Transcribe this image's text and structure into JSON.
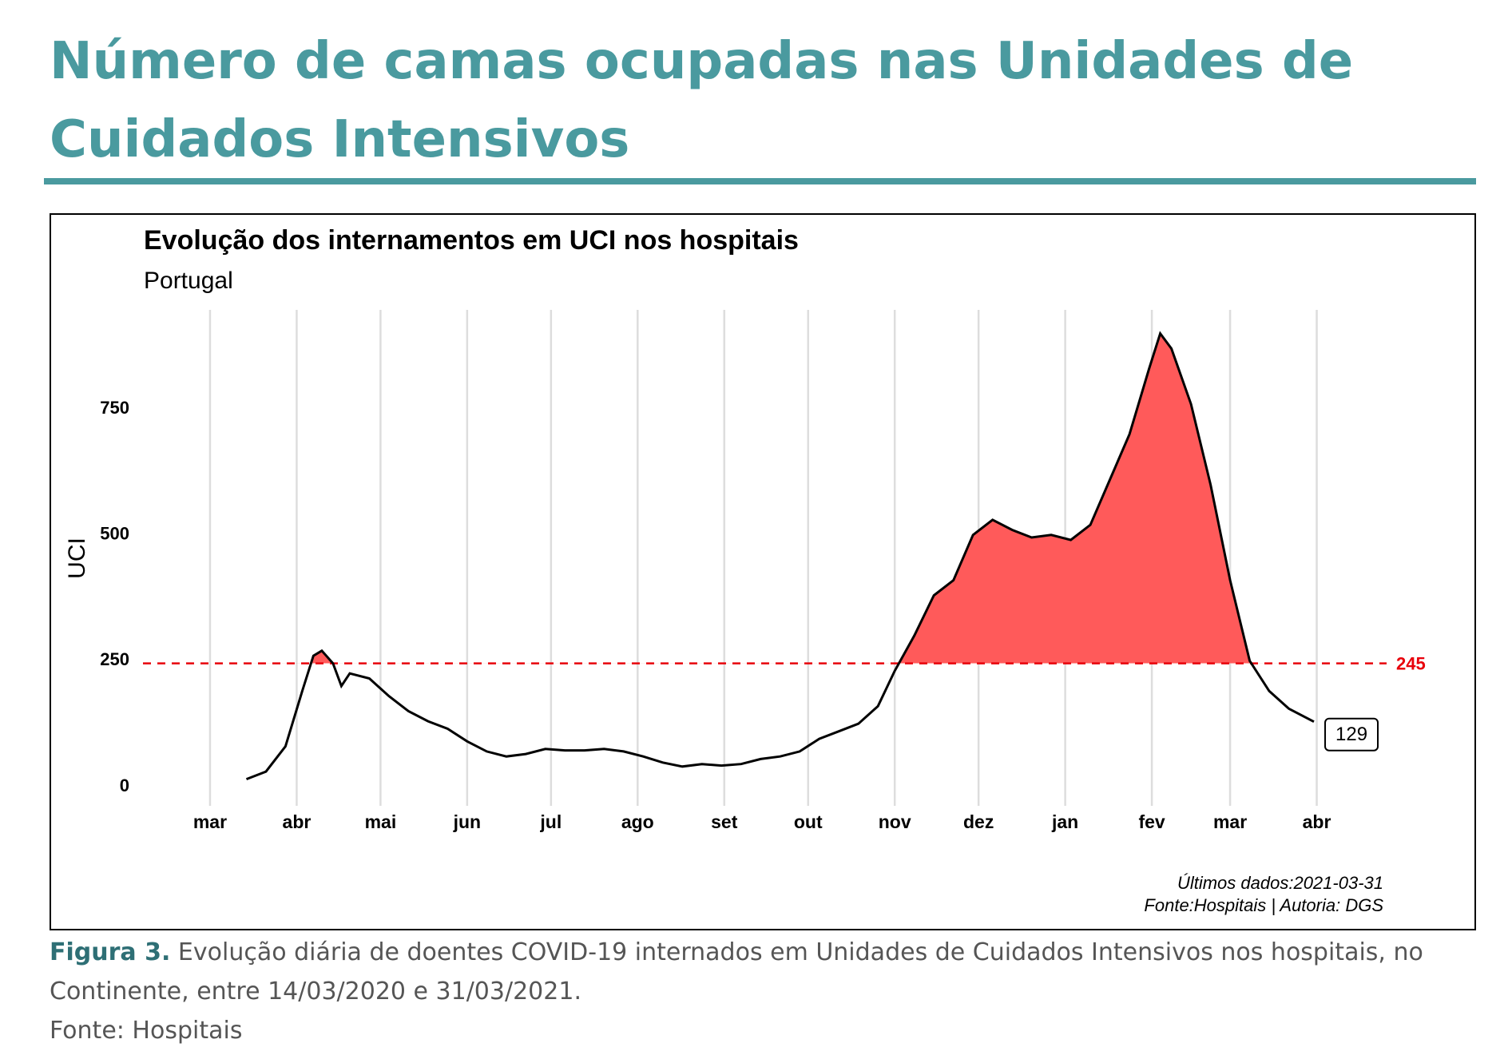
{
  "header": {
    "title": "Número de camas ocupadas nas Unidades de Cuidados Intensivos"
  },
  "chart_data": {
    "type": "line",
    "title": "Evolução dos internamentos em UCI nos hospitais",
    "subtitle": "Portugal",
    "y_label": "UCI",
    "color": "#000000",
    "fill_color": "#ff5a5a",
    "threshold": 245,
    "threshold_color": "#e8000b",
    "notes": [
      "Últimos dados:2021-03-31",
      "Fonte:Hospitais | Autoria: DGS"
    ],
    "x": [
      "2020-03-14",
      "2020-03-21",
      "2020-03-28",
      "2020-04-03",
      "2020-04-07",
      "2020-04-10",
      "2020-04-14",
      "2020-04-17",
      "2020-04-20",
      "2020-04-27",
      "2020-05-04",
      "2020-05-11",
      "2020-05-18",
      "2020-05-25",
      "2020-06-01",
      "2020-06-08",
      "2020-06-15",
      "2020-06-22",
      "2020-06-29",
      "2020-07-06",
      "2020-07-13",
      "2020-07-20",
      "2020-07-27",
      "2020-08-03",
      "2020-08-10",
      "2020-08-17",
      "2020-08-24",
      "2020-08-31",
      "2020-09-07",
      "2020-09-14",
      "2020-09-21",
      "2020-09-28",
      "2020-10-05",
      "2020-10-12",
      "2020-10-19",
      "2020-10-26",
      "2020-11-01",
      "2020-11-08",
      "2020-11-15",
      "2020-11-22",
      "2020-11-29",
      "2020-12-06",
      "2020-12-13",
      "2020-12-20",
      "2020-12-27",
      "2021-01-03",
      "2021-01-10",
      "2021-01-17",
      "2021-01-24",
      "2021-01-31",
      "2021-02-04",
      "2021-02-08",
      "2021-02-15",
      "2021-02-22",
      "2021-03-01",
      "2021-03-08",
      "2021-03-15",
      "2021-03-22",
      "2021-03-31"
    ],
    "values": [
      15,
      30,
      80,
      190,
      260,
      270,
      245,
      200,
      225,
      215,
      180,
      150,
      130,
      115,
      90,
      70,
      60,
      65,
      75,
      72,
      72,
      75,
      70,
      60,
      48,
      40,
      45,
      42,
      45,
      55,
      60,
      70,
      95,
      110,
      125,
      160,
      230,
      300,
      380,
      410,
      500,
      530,
      510,
      495,
      500,
      490,
      520,
      610,
      700,
      830,
      900,
      870,
      760,
      600,
      410,
      250,
      190,
      155,
      129
    ],
    "xlim": [
      "2020-02-06",
      "2021-04-26"
    ],
    "xticks": [
      {
        "value": "2020-03-01",
        "label": "mar"
      },
      {
        "value": "2020-04-01",
        "label": "abr"
      },
      {
        "value": "2020-05-01",
        "label": "mai"
      },
      {
        "value": "2020-06-01",
        "label": "jun"
      },
      {
        "value": "2020-07-01",
        "label": "jul"
      },
      {
        "value": "2020-08-01",
        "label": "ago"
      },
      {
        "value": "2020-09-01",
        "label": "set"
      },
      {
        "value": "2020-10-01",
        "label": "out"
      },
      {
        "value": "2020-11-01",
        "label": "nov"
      },
      {
        "value": "2020-12-01",
        "label": "dez"
      },
      {
        "value": "2021-01-01",
        "label": "jan"
      },
      {
        "value": "2021-02-01",
        "label": "fev"
      },
      {
        "value": "2021-03-01",
        "label": "mar"
      },
      {
        "value": "2021-04-01",
        "label": "abr"
      }
    ],
    "ylim": [
      -38,
      947
    ],
    "yticks": [
      0,
      250,
      500,
      750
    ],
    "grid": true
  },
  "caption": {
    "label": "Figura 3.",
    "text": "Evolução diária de doentes COVID-19 internados em Unidades de Cuidados Intensivos nos hospitais, no Continente, entre 14/03/2020 e 31/03/2021.",
    "source": "Fonte: Hospitais"
  }
}
